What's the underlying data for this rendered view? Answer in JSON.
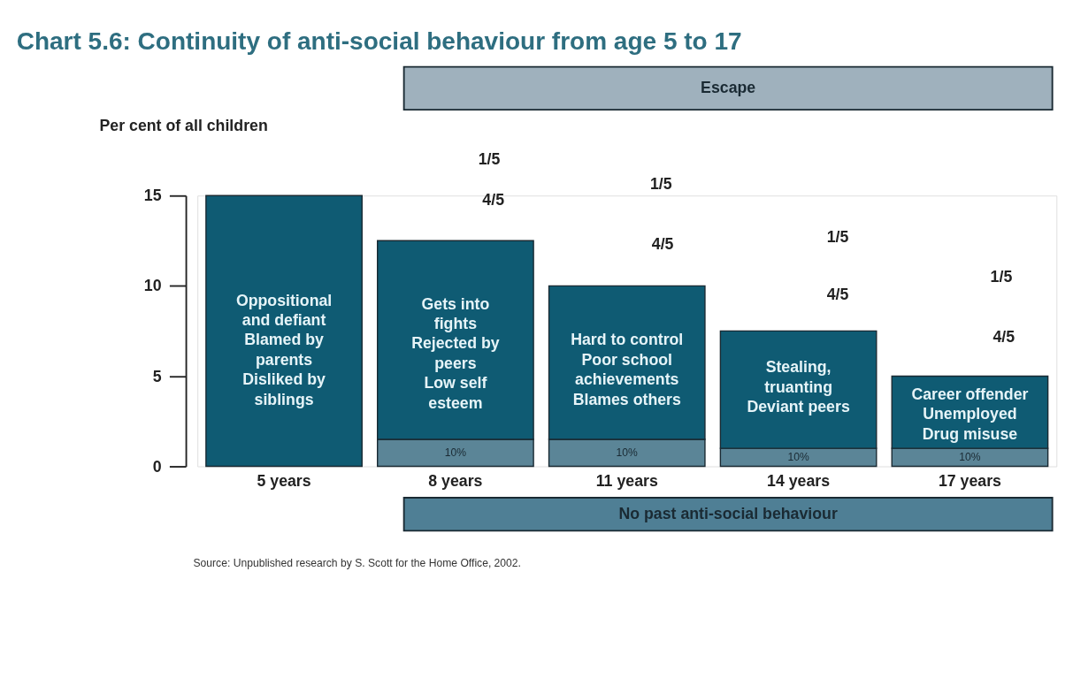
{
  "chart_data": {
    "type": "bar",
    "title": "Chart 5.6: Continuity of anti-social behaviour from age 5 to 17",
    "ylabel": "Per cent of all children",
    "categories": [
      "5 years",
      "8 years",
      "11 years",
      "14 years",
      "17 years"
    ],
    "stacked": true,
    "series": [
      {
        "color": "#5b8597",
        "values": [
          null,
          1.5,
          1.5,
          1,
          1
        ]
      },
      {
        "color": "#0f5b73",
        "values": [
          15,
          11,
          8.5,
          6.5,
          4
        ]
      }
    ],
    "ylim": [
      0,
      15
    ],
    "yticks": [
      0,
      5,
      10,
      15
    ],
    "grid": false,
    "legend": false,
    "annotations": [
      "Oppositional\nand defiant\nBlamed by\nparents\nDisliked by\nsiblings",
      "Gets into\nfights\nRejected by\npeers\nLow self\nesteem",
      "Hard to control\nPoor school\nachievements\nBlames others",
      "Stealing,\ntruanting\nDeviant peers",
      "Career offender\nUnemployed\nDrug misuse",
      "10%",
      "10%",
      "10%",
      "10%",
      "Escape",
      "No past anti-social behaviour",
      "1/5",
      "4/5",
      "1/5",
      "4/5",
      "1/5",
      "4/5",
      "1/5",
      "4/5",
      "Source: Unpublished research by S. Scott for the Home Office, 2002."
    ]
  }
}
